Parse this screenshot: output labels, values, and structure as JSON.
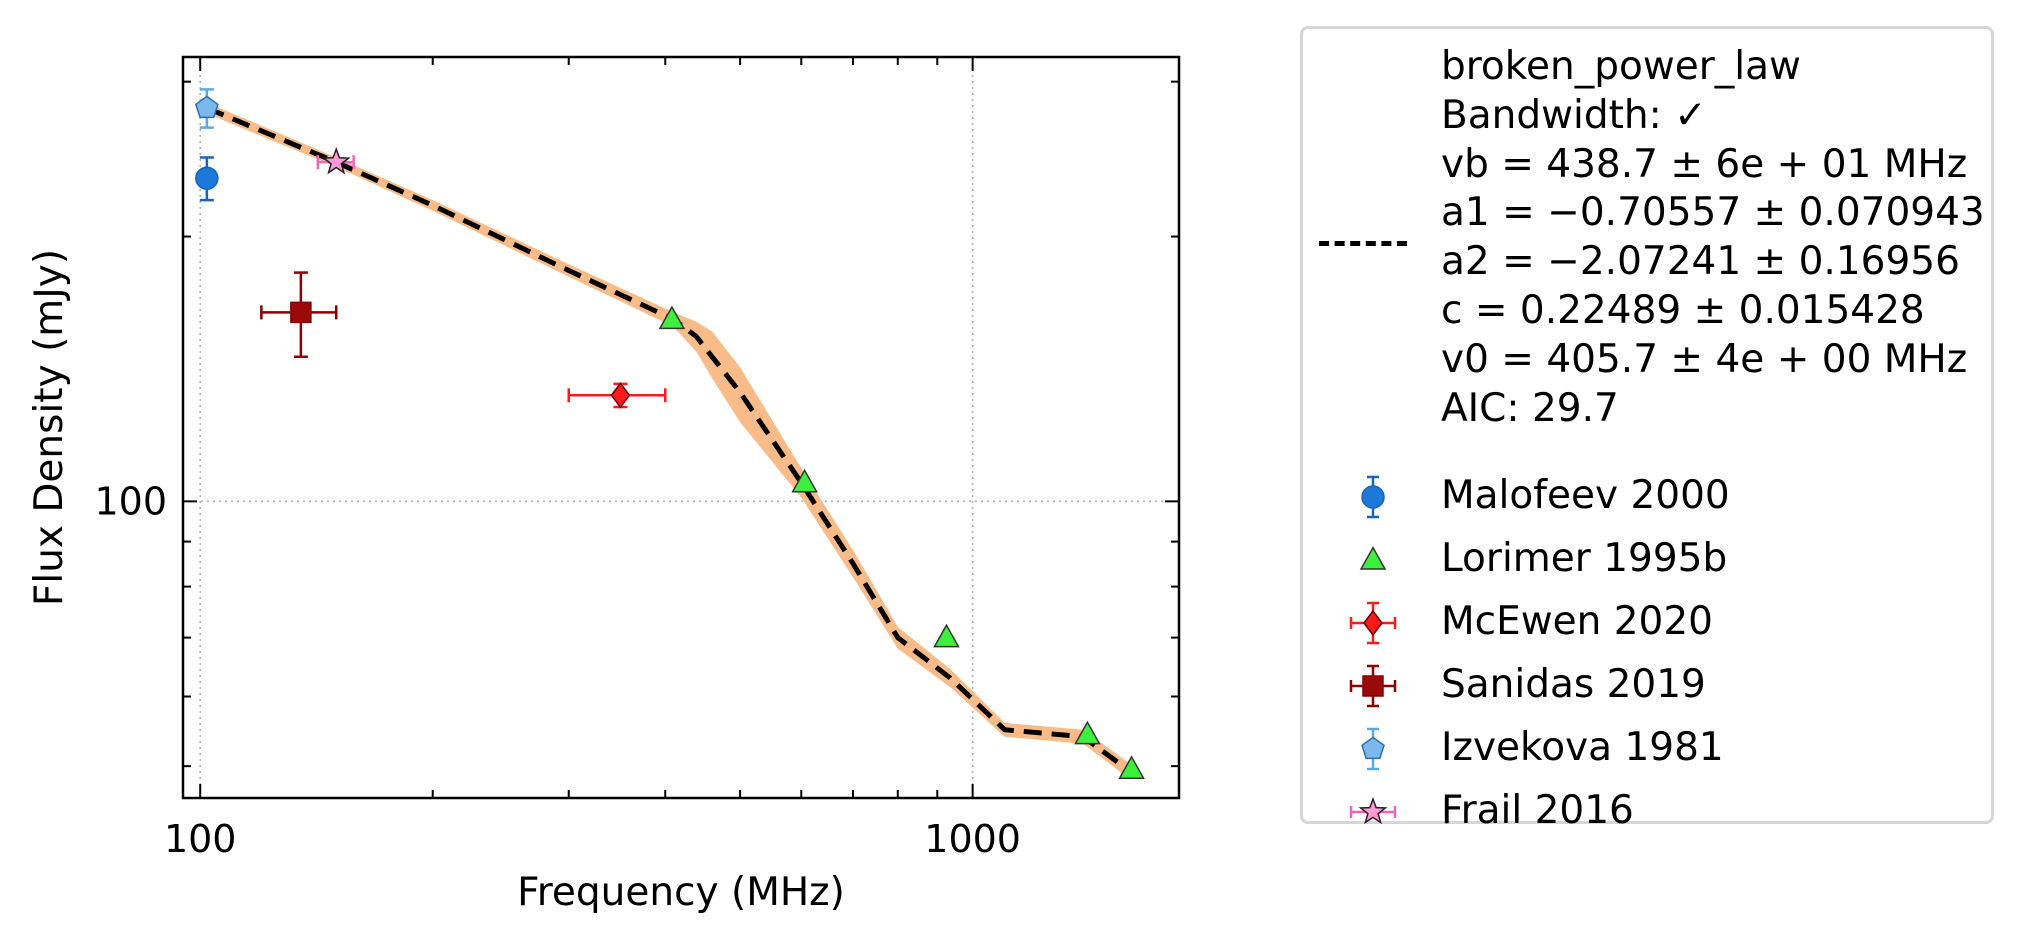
{
  "chart_data": {
    "type": "scatter",
    "xlabel": "Frequency (MHz)",
    "ylabel": "Flux Density (mJy)",
    "x_scale": "log",
    "y_scale": "log",
    "xlim": [
      95,
      1850
    ],
    "ylim": [
      46,
      320
    ],
    "x_ticks": [
      100,
      1000
    ],
    "x_tick_labels": [
      "100",
      "1000"
    ],
    "y_ticks": [
      100
    ],
    "y_tick_labels": [
      "100"
    ],
    "grid": "dotted at major ticks",
    "legend_placement": "outside right",
    "fit": {
      "label_lines": [
        "broken_power_law",
        "Bandwidth: ✓",
        "vb = 438.7 ± 6e + 01 MHz",
        "a1 = −0.70557 ± 0.070943",
        "a2 = −2.07241 ± 0.16956",
        "c = 0.22489 ± 0.015428",
        "v0 = 405.7 ± 4e + 00 MHz",
        "AIC: 29.7"
      ],
      "line_color": "#000000",
      "band_color": "#f9bb87",
      "curve": {
        "x": [
          102,
          150,
          200,
          300,
          410,
          438.7,
          460,
          500,
          600,
          700,
          800,
          935,
          1100,
          1390,
          1590
        ],
        "y": [
          280,
          243,
          217,
          183,
          161,
          154,
          146,
          133,
          105,
          85,
          70,
          63,
          55,
          54,
          49.5
        ],
        "band_lower": [
          276,
          240,
          214,
          180,
          158,
          148,
          138,
          123,
          101,
          82,
          68,
          61.5,
          54,
          53,
          48.5
        ],
        "band_upper": [
          284,
          246,
          220,
          186,
          164,
          160,
          156,
          142,
          109,
          88,
          72,
          64.5,
          56,
          55,
          50.5
        ]
      }
    },
    "series": [
      {
        "name": "Malofeev 2000",
        "marker": "circle",
        "color": "#1565c0",
        "face": "#1e78d7",
        "points": [
          {
            "x": 102,
            "y": 233,
            "xerr": [
              0,
              0
            ],
            "yerr": [
              13,
              13
            ]
          }
        ]
      },
      {
        "name": "Lorimer 1995b",
        "marker": "triangle",
        "color": "#33e833",
        "face": "#3ef03e",
        "points": [
          {
            "x": 408,
            "y": 161,
            "xerr": [
              0,
              0
            ],
            "yerr": [
              0,
              0
            ]
          },
          {
            "x": 606,
            "y": 105,
            "xerr": [
              0,
              0
            ],
            "yerr": [
              0,
              0
            ]
          },
          {
            "x": 925,
            "y": 70,
            "xerr": [
              0,
              0
            ],
            "yerr": [
              0,
              0
            ]
          },
          {
            "x": 1408,
            "y": 54.3,
            "xerr": [
              0,
              0
            ],
            "yerr": [
              0,
              0
            ]
          },
          {
            "x": 1606,
            "y": 49.6,
            "xerr": [
              0,
              0
            ],
            "yerr": [
              0,
              0
            ]
          }
        ]
      },
      {
        "name": "McEwen 2020",
        "marker": "diamond",
        "color": "#ff1a1a",
        "face": "#ff1a1a",
        "points": [
          {
            "x": 350,
            "y": 132,
            "xerr": [
              50,
              50
            ],
            "yerr": [
              4,
              4
            ]
          }
        ]
      },
      {
        "name": "Sanidas 2019",
        "marker": "square",
        "color": "#8b0000",
        "face": "#9b0a0a",
        "points": [
          {
            "x": 135,
            "y": 164,
            "xerr": [
              15,
              15
            ],
            "yerr": [
              18,
              18
            ]
          }
        ]
      },
      {
        "name": "Izvekova 1981",
        "marker": "pentagon",
        "color": "#5aaae6",
        "face": "#7ab8ee",
        "points": [
          {
            "x": 102,
            "y": 280,
            "xerr": [
              0,
              0
            ],
            "yerr": [
              14,
              14
            ]
          }
        ]
      },
      {
        "name": "Frail 2016",
        "marker": "star",
        "color": "#ee66bb",
        "face": "#ff9ad6",
        "points": [
          {
            "x": 150,
            "y": 243,
            "xerr": [
              8,
              8
            ],
            "yerr": [
              0,
              0
            ]
          }
        ]
      }
    ]
  }
}
